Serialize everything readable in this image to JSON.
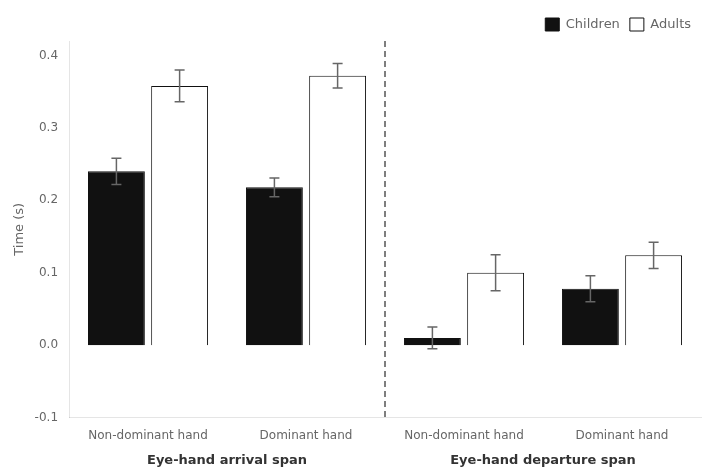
{
  "chart_data": {
    "type": "bar",
    "categories": [
      "Non-dominant hand",
      "Dominant hand",
      "Non-dominant hand",
      "Dominant hand"
    ],
    "sections": [
      "Eye-hand arrival span",
      "Eye-hand arrival span",
      "Eye-hand departure span",
      "Eye-hand departure span"
    ],
    "series": [
      {
        "name": "Children",
        "color": "#111111",
        "values": [
          0.24,
          0.218,
          0.01,
          0.078
        ],
        "errors": [
          0.018,
          0.013,
          0.015,
          0.018
        ]
      },
      {
        "name": "Adults",
        "color": "#ffffff",
        "values": [
          0.358,
          0.372,
          0.1,
          0.124
        ],
        "errors": [
          0.022,
          0.017,
          0.025,
          0.018
        ]
      }
    ],
    "ylabel": "Time (s)",
    "ylim": [
      -0.1,
      0.42
    ],
    "yticks": [
      -0.1,
      {
        "value": 0.0,
        "label": "0.0"
      },
      0.1,
      0.2,
      0.3,
      0.4
    ],
    "grid": false,
    "legend": "upper right"
  }
}
